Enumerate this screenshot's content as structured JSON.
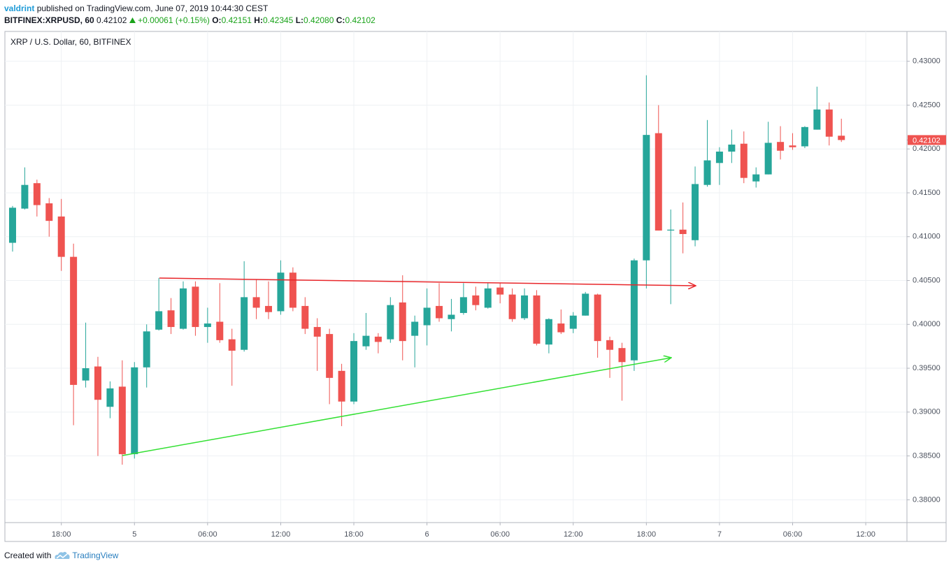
{
  "header": {
    "author": "valdrint",
    "published": "published on TradingView.com, June 07, 2019 10:44:30 CEST",
    "symbol": "BITFINEX:XRPUSD, 60",
    "last": "0.42102",
    "change": "+0.00061 (+0.15%)",
    "o_label": "O:",
    "o": "0.42151",
    "h_label": "H:",
    "h": "0.42345",
    "l_label": "L:",
    "l": "0.42080",
    "c_label": "C:",
    "c": "0.42102"
  },
  "chart_data": {
    "type": "candlestick",
    "title": "XRP / U.S. Dollar, 60, BITFINEX",
    "up_color": "#26a69a",
    "down_color": "#ef5350",
    "grid": true,
    "price_tag": "0.42102",
    "xlim": [
      -0.63,
      73.38
    ],
    "xticks": [
      {
        "value": 4,
        "label": "18:00"
      },
      {
        "value": 10,
        "label": "5"
      },
      {
        "value": 16,
        "label": "06:00"
      },
      {
        "value": 22,
        "label": "12:00"
      },
      {
        "value": 28,
        "label": "18:00"
      },
      {
        "value": 34,
        "label": "6"
      },
      {
        "value": 40,
        "label": "06:00"
      },
      {
        "value": 46,
        "label": "12:00"
      },
      {
        "value": 52,
        "label": "18:00"
      },
      {
        "value": 58,
        "label": "7"
      },
      {
        "value": 64,
        "label": "06:00"
      },
      {
        "value": 70,
        "label": "12:00"
      }
    ],
    "ylim": [
      0.3774,
      0.4334
    ],
    "yticks": [
      {
        "value": 0.38,
        "label": "0.38000"
      },
      {
        "value": 0.385,
        "label": "0.38500"
      },
      {
        "value": 0.39,
        "label": "0.39000"
      },
      {
        "value": 0.395,
        "label": "0.39500"
      },
      {
        "value": 0.4,
        "label": "0.40000"
      },
      {
        "value": 0.405,
        "label": "0.40500"
      },
      {
        "value": 0.41,
        "label": "0.41000"
      },
      {
        "value": 0.415,
        "label": "0.41500"
      },
      {
        "value": 0.42,
        "label": "0.42000"
      },
      {
        "value": 0.425,
        "label": "0.42500"
      },
      {
        "value": 0.43,
        "label": "0.43000"
      }
    ],
    "open": [
      0.4093,
      0.4132,
      0.4161,
      0.4138,
      0.4123,
      0.4077,
      0.3936,
      0.3952,
      0.3906,
      0.3929,
      0.3852,
      0.3951,
      0.3994,
      0.4016,
      0.3995,
      0.4043,
      0.3997,
      0.4003,
      0.3983,
      0.3971,
      0.4031,
      0.4021,
      0.4015,
      0.4059,
      0.4021,
      0.3997,
      0.3989,
      0.3947,
      0.3912,
      0.3975,
      0.3986,
      0.3983,
      0.4025,
      0.3987,
      0.3999,
      0.4021,
      0.4006,
      0.4013,
      0.4033,
      0.4019,
      0.4042,
      0.4034,
      0.4007,
      0.4033,
      0.3977,
      0.4001,
      0.3995,
      0.401,
      0.4034,
      0.3982,
      0.3973,
      0.3959,
      0.4073,
      0.4218,
      0.4107,
      0.4108,
      0.4096,
      0.4159,
      0.4184,
      0.4197,
      0.4206,
      0.4163,
      0.4171,
      0.4208,
      0.4204,
      0.4203,
      0.4222,
      0.4245,
      0.42151
    ],
    "high": [
      0.4135,
      0.4179,
      0.4165,
      0.4144,
      0.4143,
      0.4092,
      0.4002,
      0.3963,
      0.3935,
      0.3959,
      0.3957,
      0.4,
      0.4053,
      0.403,
      0.4049,
      0.4049,
      0.4019,
      0.4047,
      0.3995,
      0.4072,
      0.4051,
      0.4049,
      0.4073,
      0.4065,
      0.4031,
      0.4007,
      0.3995,
      0.3955,
      0.399,
      0.4013,
      0.399,
      0.4031,
      0.4056,
      0.401,
      0.4041,
      0.4047,
      0.4029,
      0.4047,
      0.4043,
      0.4047,
      0.4047,
      0.4041,
      0.4041,
      0.4039,
      0.4007,
      0.4017,
      0.4014,
      0.4037,
      0.4035,
      0.3986,
      0.3979,
      0.4075,
      0.4284,
      0.425,
      0.4131,
      0.4139,
      0.418,
      0.4233,
      0.4202,
      0.4222,
      0.422,
      0.4179,
      0.4231,
      0.4226,
      0.4218,
      0.4226,
      0.4271,
      0.4253,
      0.42345
    ],
    "low": [
      0.4083,
      0.4131,
      0.4123,
      0.41,
      0.4061,
      0.3885,
      0.3928,
      0.385,
      0.3893,
      0.384,
      0.3847,
      0.3928,
      0.3993,
      0.3989,
      0.3994,
      0.3987,
      0.3979,
      0.3979,
      0.393,
      0.3969,
      0.4006,
      0.4006,
      0.4011,
      0.4015,
      0.3989,
      0.3947,
      0.3909,
      0.3884,
      0.3909,
      0.3971,
      0.3967,
      0.3979,
      0.3959,
      0.3951,
      0.3976,
      0.4003,
      0.3992,
      0.4011,
      0.4016,
      0.4018,
      0.4024,
      0.4003,
      0.4005,
      0.3976,
      0.3967,
      0.3989,
      0.399,
      0.401,
      0.3962,
      0.3939,
      0.3913,
      0.3947,
      0.4041,
      0.4107,
      0.4023,
      0.4081,
      0.4089,
      0.4157,
      0.4159,
      0.4184,
      0.4161,
      0.4156,
      0.4171,
      0.4188,
      0.4199,
      0.4201,
      0.4222,
      0.4204,
      0.4208
    ],
    "close": [
      0.4133,
      0.4159,
      0.4136,
      0.4118,
      0.4077,
      0.3931,
      0.395,
      0.3914,
      0.3927,
      0.3852,
      0.3951,
      0.3992,
      0.4015,
      0.3997,
      0.4041,
      0.3997,
      0.4001,
      0.3982,
      0.397,
      0.4031,
      0.4019,
      0.4014,
      0.4059,
      0.4019,
      0.3995,
      0.3986,
      0.3939,
      0.3912,
      0.3981,
      0.3987,
      0.398,
      0.4022,
      0.3981,
      0.4003,
      0.4019,
      0.4007,
      0.4011,
      0.4031,
      0.4022,
      0.4041,
      0.4034,
      0.4006,
      0.4033,
      0.3978,
      0.4006,
      0.3991,
      0.401,
      0.4035,
      0.3981,
      0.3971,
      0.3957,
      0.4073,
      0.4216,
      0.4107,
      0.4108,
      0.4103,
      0.416,
      0.4187,
      0.4197,
      0.4205,
      0.4167,
      0.4171,
      0.4207,
      0.4198,
      0.4202,
      0.4225,
      0.4245,
      0.4214,
      0.42102
    ]
  },
  "footer": {
    "created": "Created with",
    "brand": "TradingView"
  }
}
